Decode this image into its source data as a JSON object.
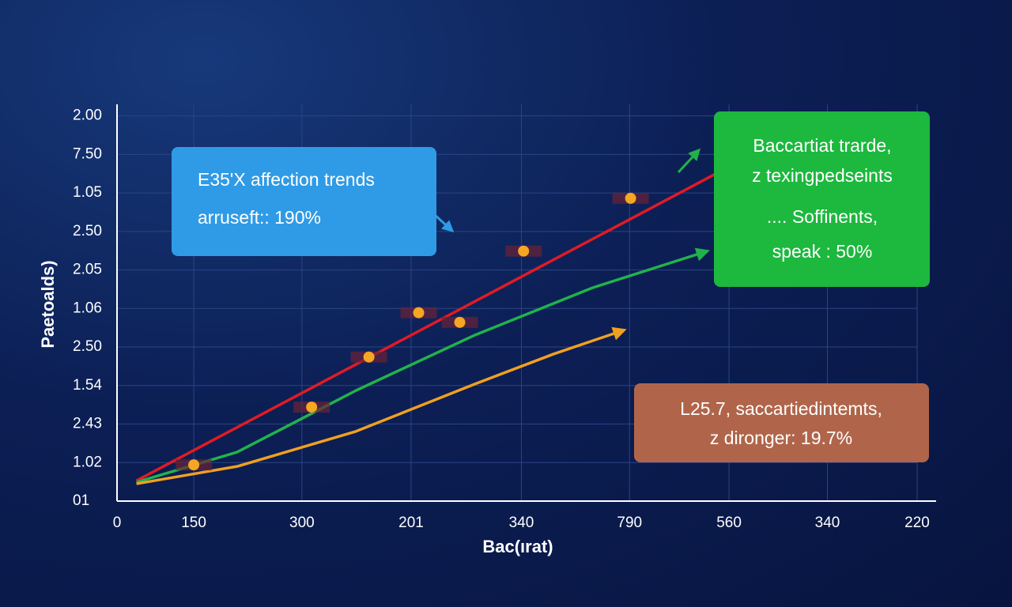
{
  "chart_data": {
    "type": "line",
    "ylabel": "Paetoalds)",
    "xlabel": "Bac(ırat)",
    "xlim": [
      0,
      7.4
    ],
    "ylim": [
      0,
      10.3
    ],
    "xticks": [
      {
        "value": 0,
        "label": "0"
      },
      {
        "value": 0.71,
        "label": "150"
      },
      {
        "value": 1.71,
        "label": "300"
      },
      {
        "value": 2.72,
        "label": "201"
      },
      {
        "value": 3.74,
        "label": "340"
      },
      {
        "value": 4.74,
        "label": "790"
      },
      {
        "value": 5.66,
        "label": "560"
      },
      {
        "value": 6.57,
        "label": "340"
      },
      {
        "value": 7.4,
        "label": "220"
      }
    ],
    "yticks": [
      {
        "value": 0,
        "label": "01"
      },
      {
        "value": 1,
        "label": "1.02"
      },
      {
        "value": 2,
        "label": "2.43"
      },
      {
        "value": 3,
        "label": "1.54"
      },
      {
        "value": 4,
        "label": "2.50"
      },
      {
        "value": 5,
        "label": "1.06"
      },
      {
        "value": 6,
        "label": "2.05"
      },
      {
        "value": 7,
        "label": "2.50"
      },
      {
        "value": 8,
        "label": "1.05"
      },
      {
        "value": 9,
        "label": "7.50"
      },
      {
        "value": 10,
        "label": "2.00"
      }
    ],
    "grid": true,
    "series": [
      {
        "color": "#e01b24",
        "x": [
          0.18,
          5.54
        ],
        "values": [
          0.53,
          8.5
        ]
      },
      {
        "color": "#22b24c",
        "x": [
          0.18,
          1.11,
          2.21,
          3.31,
          4.4,
          5.46
        ],
        "values": [
          0.49,
          1.27,
          2.87,
          4.31,
          5.54,
          6.49
        ]
      },
      {
        "color": "#f0a020",
        "x": [
          0.18,
          1.11,
          2.21,
          3.31,
          4.04,
          4.69
        ],
        "values": [
          0.45,
          0.9,
          1.81,
          3.04,
          3.82,
          4.44
        ]
      }
    ],
    "points": {
      "color": "#f5a623",
      "x": [
        0.71,
        1.8,
        2.33,
        2.79,
        3.17,
        3.76,
        4.75
      ],
      "values": [
        0.94,
        2.44,
        3.74,
        4.89,
        4.64,
        6.49,
        7.86
      ]
    },
    "annotations": [
      {
        "color": "#2f9be6",
        "lines": [
          "E35'X affection trends",
          "arruseft:: 190%"
        ]
      },
      {
        "color": "#1db83e",
        "lines": [
          "Baccartiat trarde,",
          "z texingpedseints",
          ".... Soffinents,",
          "speak : 50%"
        ]
      },
      {
        "color": "#b0654a",
        "lines": [
          "L25.7, saccartiedintemts,",
          "z dironger: 19.7%"
        ]
      }
    ]
  }
}
